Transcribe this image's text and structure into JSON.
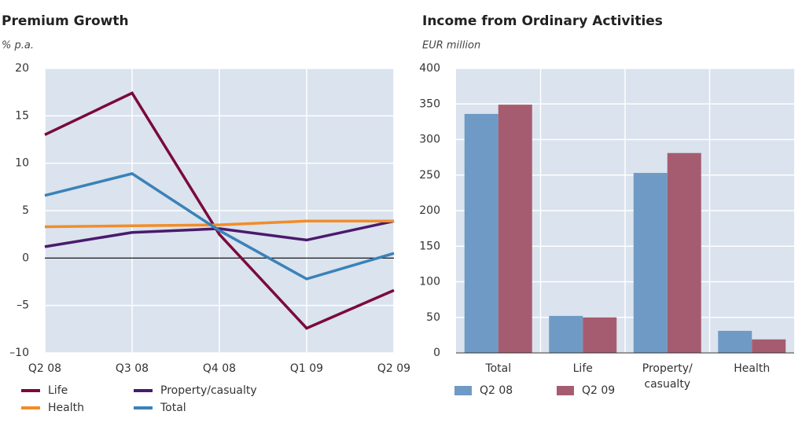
{
  "chart_data": [
    {
      "type": "line",
      "title": "Premium Growth",
      "y_label": "% p.a.",
      "categories": [
        "Q2 08",
        "Q3 08",
        "Q4 08",
        "Q1 09",
        "Q2 09"
      ],
      "series": [
        {
          "name": "Life",
          "color": "#7a0a3c",
          "values": [
            13.0,
            17.4,
            2.5,
            -7.4,
            -3.4
          ]
        },
        {
          "name": "Property/casualty",
          "color": "#4b1a6b",
          "values": [
            1.2,
            2.7,
            3.1,
            1.9,
            3.9
          ]
        },
        {
          "name": "Health",
          "color": "#f28c28",
          "values": [
            3.3,
            3.4,
            3.5,
            3.9,
            3.9
          ]
        },
        {
          "name": "Total",
          "color": "#3a82b8",
          "values": [
            6.6,
            8.9,
            2.9,
            -2.2,
            0.5
          ]
        }
      ],
      "ylim": [
        -10,
        20
      ],
      "yticks": [
        {
          "value": -10,
          "label": "–10"
        },
        {
          "value": -5,
          "label": "–5"
        },
        0,
        5,
        10,
        15,
        20
      ],
      "grid": true,
      "legend": "bottom"
    },
    {
      "type": "bar",
      "title": "Income from Ordinary Activities",
      "y_label": "EUR million",
      "categories": [
        "Total",
        "Life",
        "Property/casualty",
        "Health"
      ],
      "series": [
        {
          "name": "Q2 08",
          "color": "#6f9ac5",
          "values": [
            336,
            52,
            253,
            31
          ]
        },
        {
          "name": "Q2 09",
          "color": "#a65c70",
          "values": [
            349,
            50,
            281,
            19
          ]
        }
      ],
      "ylim": [
        0,
        400
      ],
      "yticks": [
        0,
        50,
        100,
        150,
        200,
        250,
        300,
        350,
        400
      ],
      "grid": true,
      "legend": "bottom"
    }
  ]
}
